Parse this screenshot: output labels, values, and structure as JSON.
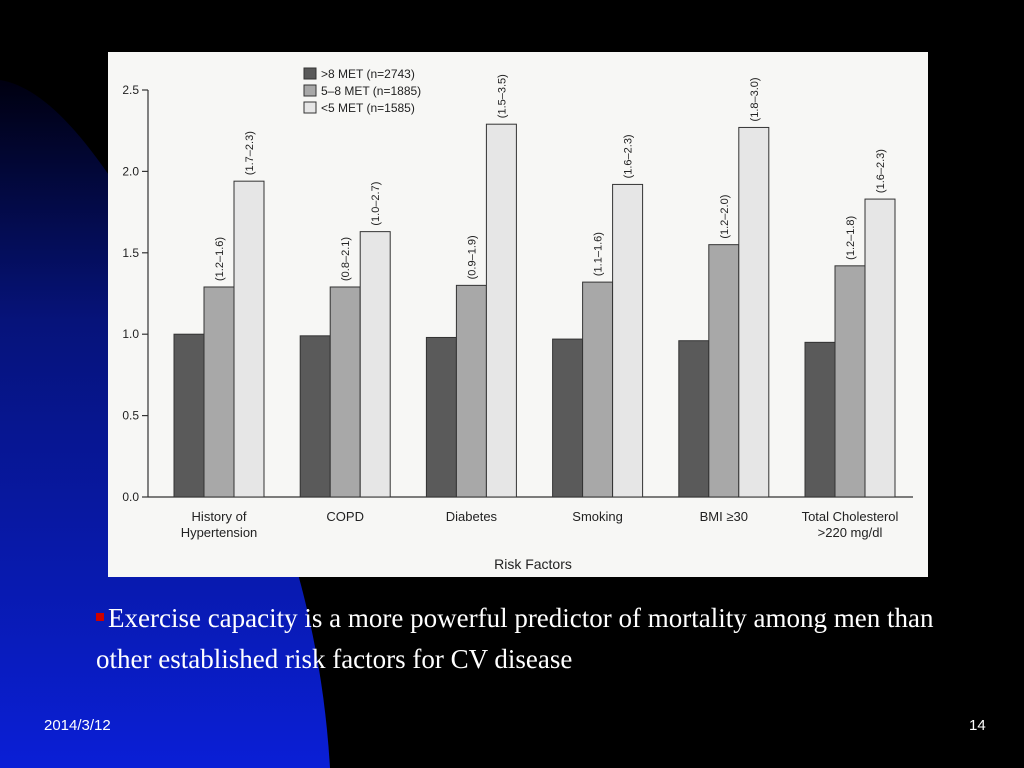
{
  "slide": {
    "bullet_text": "Exercise capacity is a more powerful predictor of mortality among men than other established risk factors for CV disease",
    "date": "2014/3/12",
    "page_number": "14"
  },
  "colors": {
    "background": "#000000",
    "blue_shape": "#0a1fd0",
    "bullet": "#cc0000",
    "series": [
      "#5a5a5a",
      "#a8a8a8",
      "#e6e6e6"
    ]
  },
  "chart_data": {
    "type": "bar",
    "title": "",
    "xlabel": "Risk Factors",
    "ylabel": "",
    "ylim": [
      0,
      2.5
    ],
    "yticks": [
      "0.0",
      "0.5",
      "1.0",
      "1.5",
      "2.0",
      "2.5"
    ],
    "categories": [
      [
        "History of",
        "Hypertension"
      ],
      [
        "COPD"
      ],
      [
        "Diabetes"
      ],
      [
        "Smoking"
      ],
      [
        "BMI ≥30"
      ],
      [
        "Total Cholesterol",
        ">220 mg/dl"
      ]
    ],
    "legend_position": "top-left",
    "series": [
      {
        "name": ">8 MET (n=2743)",
        "values": [
          1.0,
          0.99,
          0.98,
          0.97,
          0.96,
          0.95
        ],
        "ci": [
          "",
          "",
          "",
          "",
          "",
          ""
        ]
      },
      {
        "name": "5–8 MET (n=1885)",
        "values": [
          1.29,
          1.29,
          1.3,
          1.32,
          1.55,
          1.42
        ],
        "ci": [
          "(1.2–1.6)",
          "(0.8–2.1)",
          "(0.9–1.9)",
          "(1.1–1.6)",
          "(1.2–2.0)",
          "(1.2–1.8)"
        ]
      },
      {
        "name": "<5 MET (n=1585)",
        "values": [
          1.94,
          1.63,
          2.29,
          1.92,
          2.27,
          1.83
        ],
        "ci": [
          "(1.7–2.3)",
          "(1.0–2.7)",
          "(1.5–3.5)",
          "(1.6–2.3)",
          "(1.8–3.0)",
          "(1.6–2.3)"
        ]
      }
    ]
  }
}
